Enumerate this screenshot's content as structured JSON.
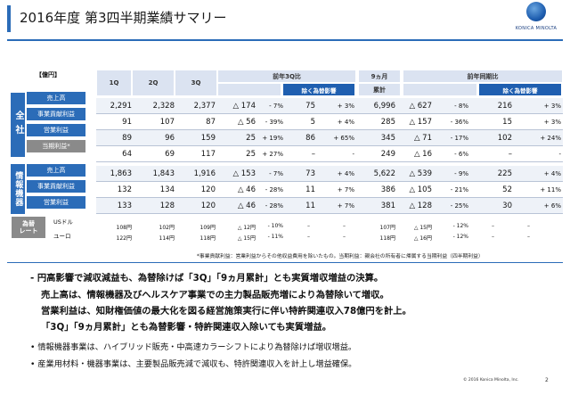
{
  "header": {
    "title": "2016年度 第3四半期業績サマリー",
    "logo_text": "KONICA MINOLTA"
  },
  "table": {
    "unit": "【億円】",
    "columns": {
      "q1": "1Q",
      "q2": "2Q",
      "q3": "3Q",
      "yoy3q": "前年3Q比",
      "excl_fx": "除く為替影響",
      "nine_months": "9ヵ月",
      "cumulative": "累計",
      "yoy_cum": "前年同期比",
      "excl_fx2": "除く為替影響"
    },
    "group_total": "全社",
    "group_info": "情報機器",
    "rows": [
      {
        "label": "売上高",
        "q1": "2,291",
        "q2": "2,328",
        "q3": "2,377",
        "d3": "△ 174",
        "p3": "- 7%",
        "x3": "75",
        "xp3": "+ 3%",
        "c9": "6,996",
        "dc": "△ 627",
        "pc": "- 8%",
        "xc": "216",
        "xpc": "+ 3%"
      },
      {
        "label": "事業貢献利益",
        "q1": "91",
        "q2": "107",
        "q3": "87",
        "d3": "△ 56",
        "p3": "- 39%",
        "x3": "5",
        "xp3": "+ 4%",
        "c9": "285",
        "dc": "△ 157",
        "pc": "- 36%",
        "xc": "15",
        "xpc": "+ 3%"
      },
      {
        "label": "営業利益",
        "q1": "89",
        "q2": "96",
        "q3": "159",
        "d3": "25",
        "p3": "+ 19%",
        "x3": "86",
        "xp3": "+ 65%",
        "c9": "345",
        "dc": "△ 71",
        "pc": "- 17%",
        "xc": "102",
        "xpc": "+ 24%"
      },
      {
        "label": "当期利益*",
        "q1": "64",
        "q2": "69",
        "q3": "117",
        "d3": "25",
        "p3": "+ 27%",
        "x3": "–",
        "xp3": "-",
        "c9": "249",
        "dc": "△ 16",
        "pc": "- 6%",
        "xc": "–",
        "xpc": "-"
      },
      {
        "label": "売上高",
        "q1": "1,863",
        "q2": "1,843",
        "q3": "1,916",
        "d3": "△ 153",
        "p3": "- 7%",
        "x3": "73",
        "xp3": "+ 4%",
        "c9": "5,622",
        "dc": "△ 539",
        "pc": "- 9%",
        "xc": "225",
        "xpc": "+ 4%"
      },
      {
        "label": "事業貢献利益",
        "q1": "132",
        "q2": "134",
        "q3": "120",
        "d3": "△ 46",
        "p3": "- 28%",
        "x3": "11",
        "xp3": "+ 7%",
        "c9": "386",
        "dc": "△ 105",
        "pc": "- 21%",
        "xc": "52",
        "xpc": "+ 11%"
      },
      {
        "label": "営業利益",
        "q1": "133",
        "q2": "128",
        "q3": "120",
        "d3": "△ 46",
        "p3": "- 28%",
        "x3": "11",
        "xp3": "+ 7%",
        "c9": "381",
        "dc": "△ 128",
        "pc": "- 25%",
        "xc": "30",
        "xpc": "+ 6%"
      }
    ],
    "rates": {
      "label_line1": "為替",
      "label_line2": "レート",
      "rows": [
        {
          "name": "USドル",
          "q1": "108円",
          "q2": "102円",
          "q3": "109円",
          "d3": "△ 12円",
          "p3": "- 10%",
          "x3": "–",
          "xp3": "–",
          "c9": "107円",
          "dc": "△ 15円",
          "pc": "- 12%",
          "xc": "–",
          "xpc": "–"
        },
        {
          "name": "ユーロ",
          "q1": "122円",
          "q2": "114円",
          "q3": "118円",
          "d3": "△ 15円",
          "p3": "- 11%",
          "x3": "–",
          "xp3": "–",
          "c9": "118円",
          "dc": "△ 16円",
          "pc": "- 12%",
          "xc": "–",
          "xpc": "–"
        }
      ]
    },
    "footnote": "*事業貢献利益：営業利益からその他収益費用を除いたもの。当期利益：親会社の所有者に帰属する当期利益（四半期利益）"
  },
  "bullets": {
    "line1": "- 円高影響で減収減益も、為替除けば「3Q」「9ヵ月累計」とも実質増収増益の決算。",
    "line2": "売上高は、情報機器及びヘルスケア事業での主力製品販売増により為替除いて増収。",
    "line3": "営業利益は、知財権価値の最大化を図る経営施策実行に伴い特許関連収入78億円を計上。",
    "line4": "「3Q」「9ヵ月累計」とも為替影響・特許関連収入除いても実質増益。",
    "line5": "• 情報機器事業は、ハイブリッド販売・中高速カラーシフトにより為替除けば増収増益。",
    "line6": "• 産業用材料・機器事業は、主要製品販売減で減収も、特許関連収入を計上し増益確保。"
  },
  "footer": {
    "copyright": "© 2016 Konica Minolta, Inc.",
    "page": "2"
  }
}
